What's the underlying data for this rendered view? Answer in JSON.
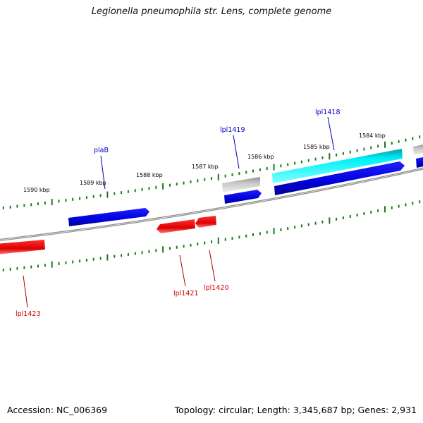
{
  "title": "Legionella pneumophila str. Lens, complete genome",
  "footer": {
    "accession": "Accession: NC_006369",
    "summary": "Topology: circular; Length: 3,345,687 bp; Genes: 2,931"
  },
  "scale_labels": [
    "1590 kbp",
    "1589 kbp",
    "1588 kbp",
    "1587 kbp",
    "1586 kbp",
    "1585 kbp",
    "1584 kbp"
  ],
  "gene_labels": {
    "plaB": "plaB",
    "lpl1419": "lpl1419",
    "lpl1418": "lpl1418",
    "lpl1421": "lpl1421",
    "lpl1420": "lpl1420",
    "lpl1423": "lpl1423"
  },
  "colors": {
    "forward_gene": "#0000ee",
    "reverse_gene": "#ee0000",
    "highlight_gene": "#00e5ee",
    "other_feature": "#b0b0b0",
    "backbone": "#808080",
    "ticks": "#1a7a1a"
  }
}
